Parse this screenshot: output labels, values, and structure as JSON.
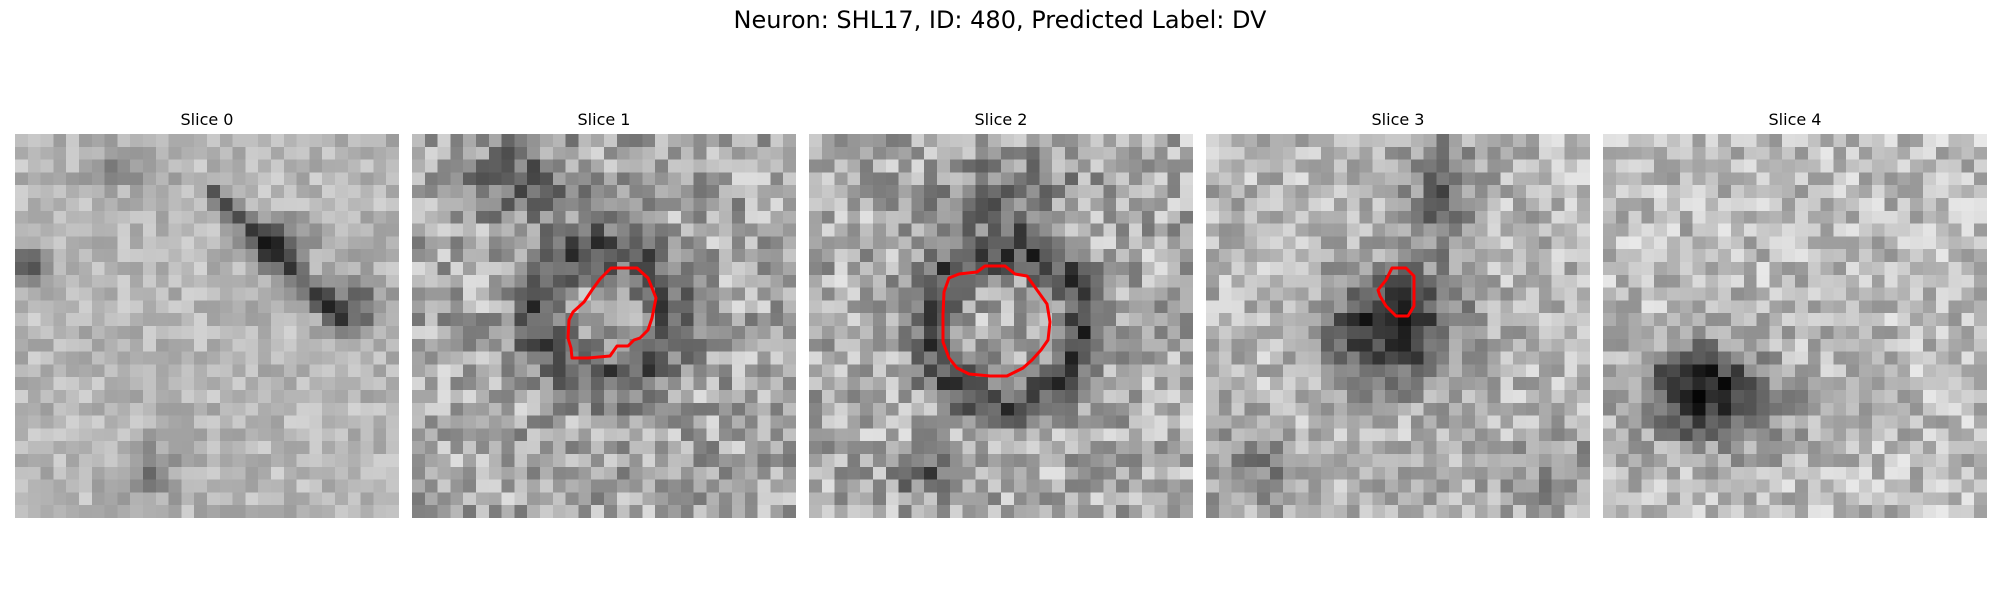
{
  "figure": {
    "title": "Neuron: SHL17, ID: 480, Predicted Label: DV"
  },
  "panels": [
    {
      "title": "Slice 0",
      "has_contour": false,
      "blob": "diagonal-streak"
    },
    {
      "title": "Slice 1",
      "has_contour": true,
      "blob": "ring"
    },
    {
      "title": "Slice 2",
      "has_contour": true,
      "blob": "ring"
    },
    {
      "title": "Slice 3",
      "has_contour": true,
      "blob": "dark-core"
    },
    {
      "title": "Slice 4",
      "has_contour": false,
      "blob": "dark-core-left"
    }
  ],
  "colors": {
    "contour": "#ff0000",
    "colormap": "gray"
  }
}
